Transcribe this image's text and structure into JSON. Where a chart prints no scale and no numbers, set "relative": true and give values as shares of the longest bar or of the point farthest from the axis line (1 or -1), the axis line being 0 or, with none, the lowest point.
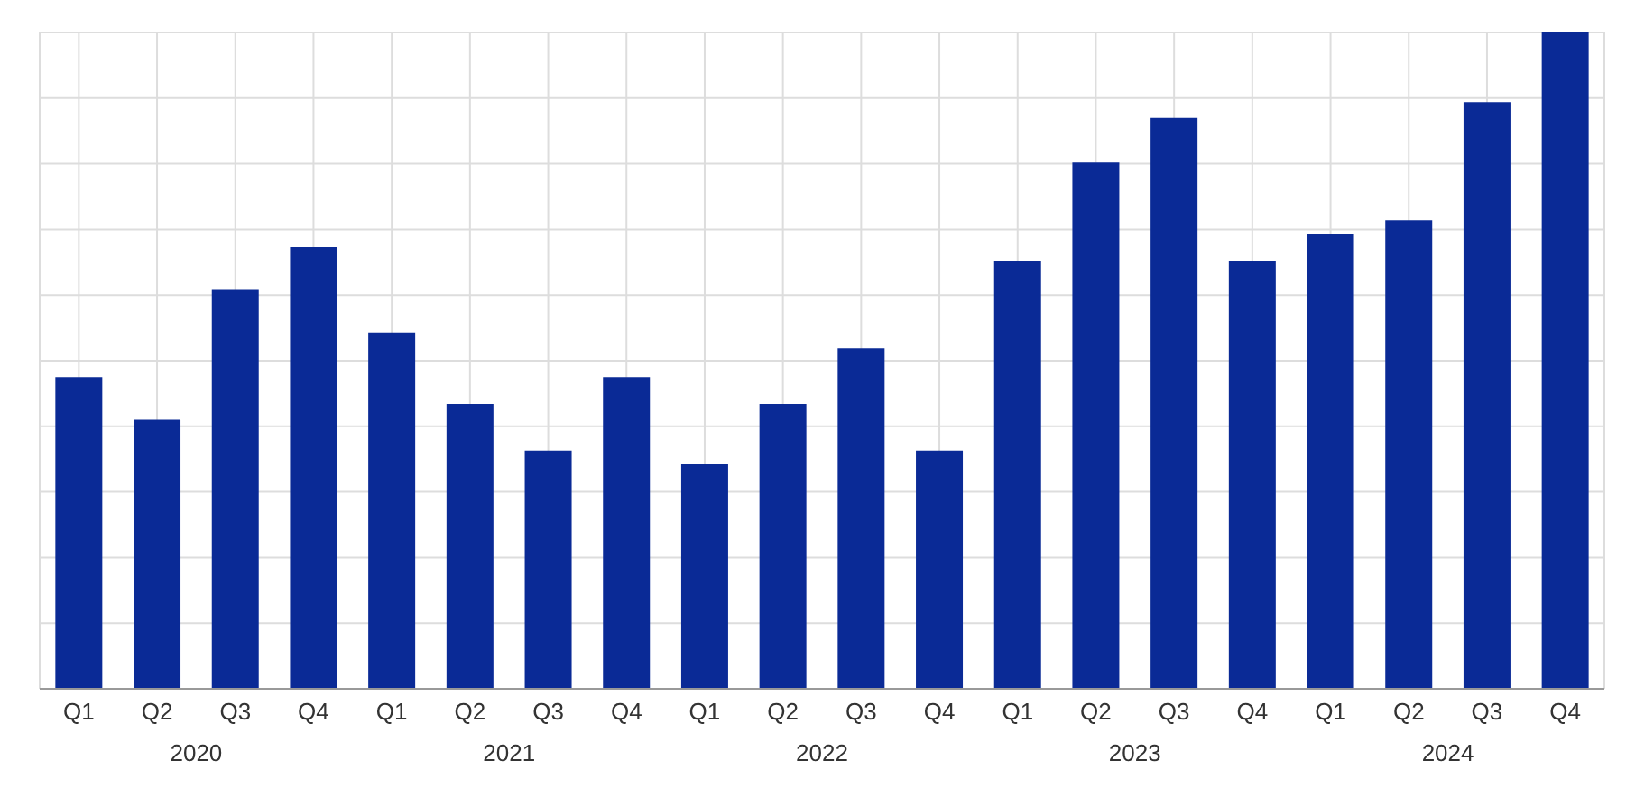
{
  "chart_data": {
    "type": "bar",
    "relative": true,
    "color": "#0a2a96",
    "grid": true,
    "categories": [
      "Q1",
      "Q2",
      "Q3",
      "Q4",
      "Q1",
      "Q2",
      "Q3",
      "Q4",
      "Q1",
      "Q2",
      "Q3",
      "Q4",
      "Q1",
      "Q2",
      "Q3",
      "Q4",
      "Q1",
      "Q2",
      "Q3",
      "Q4"
    ],
    "values": [
      0.475,
      0.41,
      0.608,
      0.673,
      0.543,
      0.434,
      0.363,
      0.475,
      0.342,
      0.434,
      0.519,
      0.363,
      0.652,
      0.802,
      0.87,
      0.652,
      0.693,
      0.714,
      0.894,
      1
    ],
    "annotations": [
      "2020",
      "2021",
      "2022",
      "2023",
      "2024"
    ]
  }
}
